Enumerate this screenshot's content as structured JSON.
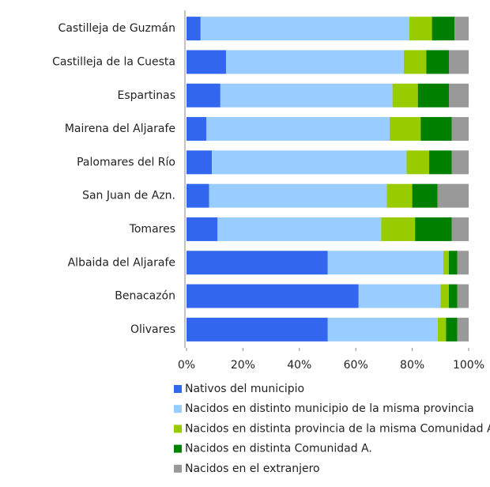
{
  "chart_data": {
    "type": "stacked_barh",
    "categories": [
      "Castilleja de Guzmán",
      "Castilleja de la Cuesta",
      "Espartinas",
      "Mairena del Aljarafe",
      "Palomares del Río",
      "San Juan de Azn.",
      "Tomares",
      "Albaida del Aljarafe",
      "Benacazón",
      "Olivares"
    ],
    "series": [
      {
        "name": "Nativos del municipio",
        "color": "#3366ee",
        "values": [
          5,
          14,
          12,
          7,
          9,
          8,
          11,
          50,
          61,
          50
        ]
      },
      {
        "name": "Nacidos en distinto municipio de la misma provincia",
        "color": "#99ccff",
        "values": [
          74,
          63,
          61,
          65,
          69,
          63,
          58,
          41,
          29,
          39
        ]
      },
      {
        "name": "Nacidos en distinta provincia de la misma Comunidad A.",
        "color": "#99cc00",
        "values": [
          8,
          8,
          9,
          11,
          8,
          9,
          12,
          2,
          3,
          3
        ]
      },
      {
        "name": "Nacidos en distinta Comunidad A.",
        "color": "#008000",
        "values": [
          8,
          8,
          11,
          11,
          8,
          9,
          13,
          3,
          3,
          4
        ]
      },
      {
        "name": "Nacidos en el extranjero",
        "color": "#999999",
        "values": [
          5,
          7,
          7,
          6,
          6,
          11,
          6,
          4,
          4,
          4
        ]
      }
    ],
    "xlim": [
      0,
      100
    ],
    "xticks": [
      {
        "value": 0,
        "label": "0%"
      },
      {
        "value": 20,
        "label": "20%"
      },
      {
        "value": 40,
        "label": "40%"
      },
      {
        "value": 60,
        "label": "60%"
      },
      {
        "value": 80,
        "label": "80%"
      },
      {
        "value": 100,
        "label": "100%"
      }
    ],
    "legend": "bottom"
  }
}
